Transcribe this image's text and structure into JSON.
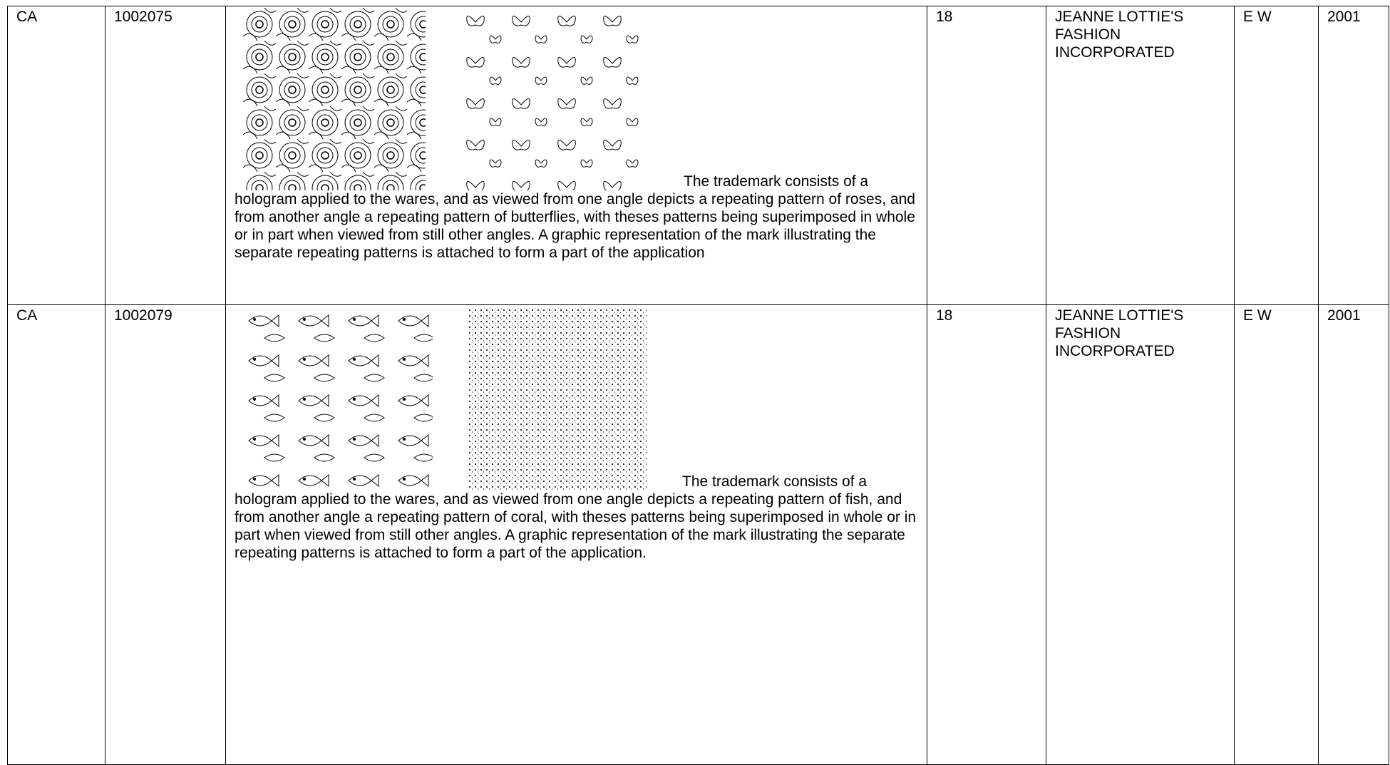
{
  "table": {
    "rows": [
      [
        "CA",
        "1002075",
        "The trademark consists of a hologram applied to the wares, and as viewed from one angle depicts a repeating pattern of roses, and from another angle a repeating pattern of butterflies, with theses patterns being superimposed in whole or in part when viewed from still other angles. A graphic representation of the mark illustrating the separate repeating patterns is attached to form a part of the application",
        "18",
        "JEANNE LOTTIE'S FASHION INCORPORATED",
        "E W",
        "2001"
      ],
      [
        "CA",
        "1002079",
        "The trademark consists of a hologram applied to the wares, and as viewed from one angle depicts a repeating pattern of fish, and from another angle a repeating pattern of coral, with theses patterns being superimposed in whole or in part when viewed from still other angles. A graphic representation of the mark illustrating the separate repeating patterns is attached to form a part of the application.",
        "18",
        "JEANNE LOTTIE'S FASHION INCORPORATED",
        "E W",
        "2001"
      ]
    ]
  }
}
